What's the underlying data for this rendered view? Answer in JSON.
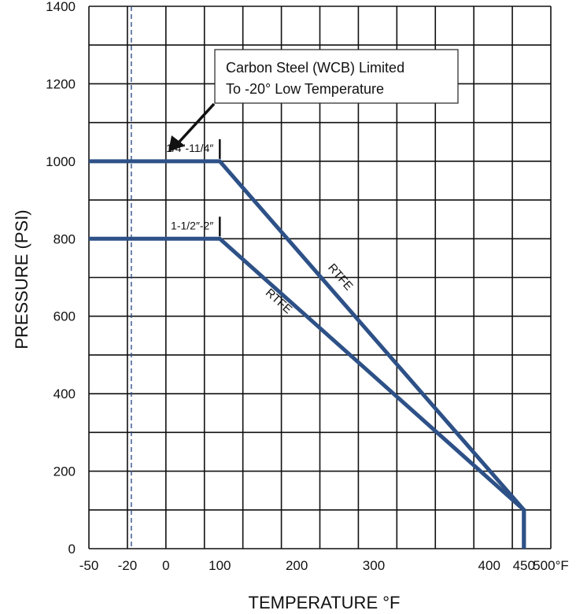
{
  "chart_data": {
    "type": "line",
    "title": "",
    "xlabel": "TEMPERATURE °F",
    "ylabel": "PRESSURE (PSI)",
    "xlim": [
      -50,
      500
    ],
    "ylim": [
      0,
      1400
    ],
    "grid": true,
    "x_ticks": [
      {
        "value": -50,
        "label": "-50"
      },
      {
        "value": -20,
        "label": "-20"
      },
      {
        "value": 0,
        "label": "0"
      },
      {
        "value": 100,
        "label": "100"
      },
      {
        "value": 200,
        "label": "200"
      },
      {
        "value": 300,
        "label": "300"
      },
      {
        "value": 400,
        "label": "400"
      },
      {
        "value": 450,
        "label": "450"
      },
      {
        "value": 500,
        "label": "500°F"
      }
    ],
    "y_ticks": [
      {
        "value": 0,
        "label": "0"
      },
      {
        "value": 200,
        "label": "200"
      },
      {
        "value": 400,
        "label": "400"
      },
      {
        "value": 600,
        "label": "600"
      },
      {
        "value": 800,
        "label": "800"
      },
      {
        "value": 1000,
        "label": "1000"
      },
      {
        "value": 1200,
        "label": "1200"
      },
      {
        "value": 1400,
        "label": "1400"
      }
    ],
    "series": [
      {
        "name": "1/4″-11/4″",
        "segment_label": "RTFE",
        "color": "#2d5187",
        "x": [
          -50,
          100,
          450,
          450
        ],
        "y": [
          1000,
          1000,
          100,
          0
        ]
      },
      {
        "name": "1-1/2″-2″",
        "segment_label": "RTFE",
        "color": "#2d5187",
        "x": [
          -50,
          100,
          450,
          450
        ],
        "y": [
          800,
          800,
          100,
          0
        ]
      }
    ],
    "reference_line": {
      "x": -20,
      "style": "dashed",
      "color": "#2d5187"
    },
    "annotation": {
      "lines": [
        "Carbon Steel (WCB) Limited",
        "To -20° Low Temperature"
      ],
      "points_to": {
        "x": -20,
        "y": 1000
      }
    }
  }
}
